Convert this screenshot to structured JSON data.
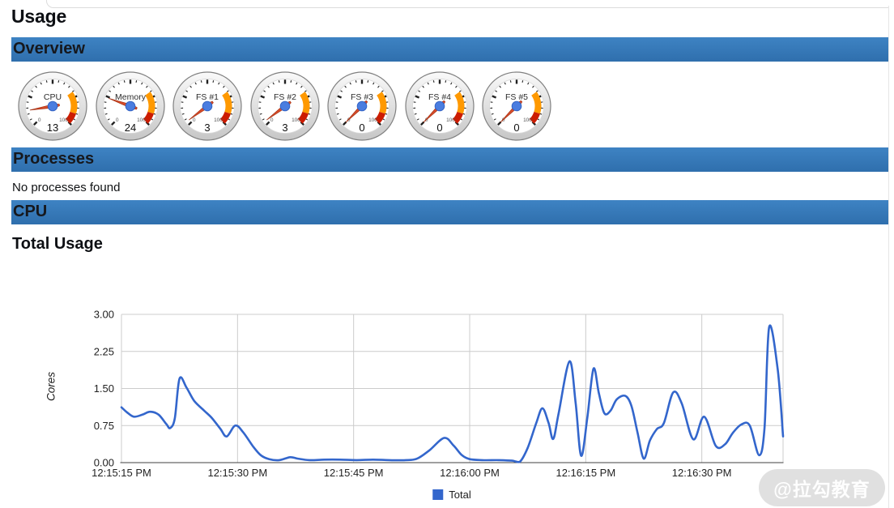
{
  "page": {
    "title": "Usage"
  },
  "sections": [
    {
      "id": "overview",
      "label": "Overview"
    },
    {
      "id": "processes",
      "label": "Processes"
    },
    {
      "id": "cpu",
      "label": "CPU"
    }
  ],
  "processes_empty": "No processes found",
  "gauges": [
    {
      "label": "CPU",
      "value": 13
    },
    {
      "label": "Memory",
      "value": 24
    },
    {
      "label": "FS #1",
      "value": 3
    },
    {
      "label": "FS #2",
      "value": 3
    },
    {
      "label": "FS #3",
      "value": 0
    },
    {
      "label": "FS #4",
      "value": 0
    },
    {
      "label": "FS #5",
      "value": 0
    }
  ],
  "gauge_config": {
    "min": 0,
    "max": 100,
    "min_label": "0",
    "max_label": "100",
    "yellow_from": 70,
    "yellow_to": 90,
    "red_from": 90,
    "red_to": 100,
    "colors": {
      "yellow": "#ff9900",
      "red": "#cc1c00",
      "needle": "#d94c2b",
      "needle_edge": "#a33011",
      "hub": "#4a7de0",
      "hub_edge": "#3464c4"
    }
  },
  "chart_data": {
    "type": "line",
    "title": "Total Usage",
    "ylabel": "Cores",
    "ylim": [
      0,
      3
    ],
    "grid": true,
    "x_unit": "seconds after 12:15:00 PM",
    "yticks": [
      {
        "v": 0,
        "label": "0.00"
      },
      {
        "v": 0.75,
        "label": "0.75"
      },
      {
        "v": 1.5,
        "label": "1.50"
      },
      {
        "v": 2.25,
        "label": "2.25"
      },
      {
        "v": 3,
        "label": "3.00"
      }
    ],
    "xticks": [
      {
        "t": 15,
        "label": "12:15:15 PM"
      },
      {
        "t": 30,
        "label": "12:15:30 PM"
      },
      {
        "t": 45,
        "label": "12:15:45 PM"
      },
      {
        "t": 60,
        "label": "12:16:00 PM"
      },
      {
        "t": 75,
        "label": "12:16:15 PM"
      },
      {
        "t": 90,
        "label": "12:16:30 PM"
      }
    ],
    "legend": {
      "position": "bottom",
      "label": "Total"
    },
    "series": [
      {
        "name": "Total",
        "color": "#3366cc",
        "points": [
          [
            15,
            1.12
          ],
          [
            15.7,
            1.02
          ],
          [
            16.6,
            0.93
          ],
          [
            17.7,
            0.97
          ],
          [
            18.7,
            1.03
          ],
          [
            19.8,
            0.97
          ],
          [
            20.8,
            0.78
          ],
          [
            21.3,
            0.7
          ],
          [
            21.9,
            0.9
          ],
          [
            22.5,
            1.7
          ],
          [
            23.4,
            1.52
          ],
          [
            24.4,
            1.25
          ],
          [
            25.7,
            1.05
          ],
          [
            26.7,
            0.9
          ],
          [
            27.8,
            0.68
          ],
          [
            28.6,
            0.53
          ],
          [
            29.7,
            0.75
          ],
          [
            30.7,
            0.62
          ],
          [
            32,
            0.33
          ],
          [
            33,
            0.15
          ],
          [
            34.1,
            0.07
          ],
          [
            35.4,
            0.05
          ],
          [
            36.8,
            0.11
          ],
          [
            37.8,
            0.08
          ],
          [
            39.3,
            0.05
          ],
          [
            41.2,
            0.06
          ],
          [
            43.3,
            0.06
          ],
          [
            45.4,
            0.05
          ],
          [
            47.5,
            0.06
          ],
          [
            49.6,
            0.05
          ],
          [
            51.7,
            0.05
          ],
          [
            53.2,
            0.08
          ],
          [
            54.8,
            0.25
          ],
          [
            56.7,
            0.5
          ],
          [
            57.9,
            0.35
          ],
          [
            59,
            0.15
          ],
          [
            60,
            0.07
          ],
          [
            61.6,
            0.05
          ],
          [
            63.7,
            0.05
          ],
          [
            65.5,
            0.04
          ],
          [
            66.5,
            0.02
          ],
          [
            67.5,
            0.3
          ],
          [
            68.6,
            0.8
          ],
          [
            69.4,
            1.1
          ],
          [
            70.2,
            0.8
          ],
          [
            70.8,
            0.48
          ],
          [
            71.5,
            1.0
          ],
          [
            72.9,
            2.05
          ],
          [
            73.7,
            1.2
          ],
          [
            74.4,
            0.14
          ],
          [
            75.2,
            0.9
          ],
          [
            76,
            1.9
          ],
          [
            76.7,
            1.4
          ],
          [
            77.4,
            1.0
          ],
          [
            78.2,
            1.05
          ],
          [
            79,
            1.28
          ],
          [
            80.1,
            1.35
          ],
          [
            80.9,
            1.15
          ],
          [
            81.7,
            0.6
          ],
          [
            82.5,
            0.08
          ],
          [
            83.3,
            0.45
          ],
          [
            84.2,
            0.68
          ],
          [
            85.1,
            0.8
          ],
          [
            86.3,
            1.42
          ],
          [
            87.4,
            1.2
          ],
          [
            88.9,
            0.47
          ],
          [
            90.3,
            0.93
          ],
          [
            91.8,
            0.34
          ],
          [
            93,
            0.37
          ],
          [
            94,
            0.6
          ],
          [
            95.1,
            0.77
          ],
          [
            96.2,
            0.75
          ],
          [
            97.4,
            0.15
          ],
          [
            98.1,
            0.7
          ],
          [
            98.7,
            2.74
          ],
          [
            99.8,
            1.9
          ],
          [
            100.5,
            0.53
          ]
        ]
      }
    ]
  },
  "watermark": {
    "text": "@拉勾教育"
  },
  "colors": {
    "section_bar_top": "#3e83c3",
    "section_bar_bottom": "#2f6fad",
    "section_bar_text": "#16181d",
    "grid": "#cccccc",
    "baseline": "#424242",
    "axis_text": "#222222"
  }
}
